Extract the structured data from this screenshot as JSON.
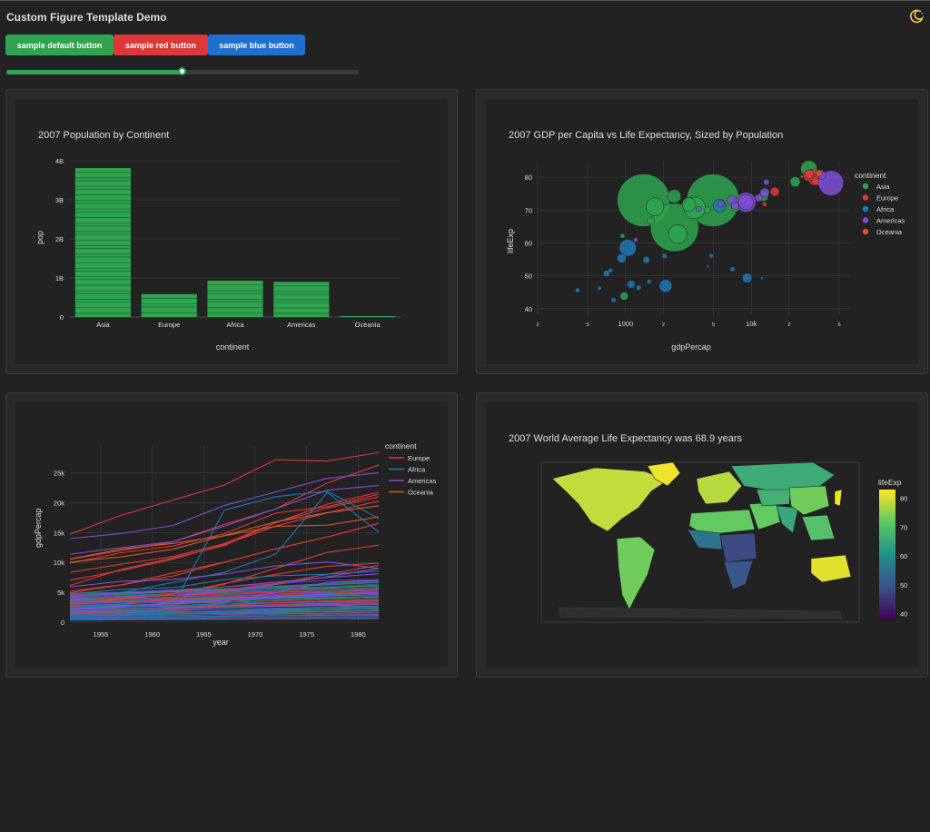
{
  "app": {
    "title": "Custom Figure Template Demo",
    "theme_toggle_icon": "moon-sun-icon"
  },
  "controls": {
    "buttons": [
      {
        "label": "sample default button",
        "color": "#2ea44f"
      },
      {
        "label": "sample red button",
        "color": "#dc3838"
      },
      {
        "label": "sample blue button",
        "color": "#1f6fd0"
      }
    ],
    "slider": {
      "value": 0.5,
      "accent": "#2ea44f"
    }
  },
  "colors": {
    "Asia": "#2ea44f",
    "Europe": "#dc3838",
    "Africa": "#1f77b4",
    "Americas": "#7b4fd6",
    "Oceania": "#d9562b"
  },
  "chart_data": [
    {
      "type": "bar",
      "title": "2007 Population by Continent",
      "xlabel": "continent",
      "ylabel": "pop",
      "categories": [
        "Asia",
        "Europe",
        "Africa",
        "Americas",
        "Oceania"
      ],
      "values": [
        3811953827,
        586098529,
        929539692,
        898871184,
        24549947
      ],
      "ylim": [
        0,
        4000000000
      ],
      "yticks": [
        0,
        1000000000,
        2000000000,
        3000000000,
        4000000000
      ],
      "ytick_labels": [
        "0",
        "1B",
        "2B",
        "3B",
        "4B"
      ],
      "segments_note_stacked_countries": true,
      "color": "#2ea44f"
    },
    {
      "type": "scatter",
      "title": "2007 GDP per Capita vs Life Expectancy, Sized by Population",
      "xlabel": "gdpPercap",
      "ylabel": "lifeExp",
      "x_scale": "log",
      "xlim": [
        200,
        60000
      ],
      "ylim": [
        38,
        85
      ],
      "xtick_labels": [
        "2",
        "5",
        "1000",
        "2",
        "5",
        "10k",
        "2",
        "5"
      ],
      "xtick_values": [
        200,
        500,
        1000,
        2000,
        5000,
        10000,
        20000,
        50000
      ],
      "ytick_values": [
        40,
        50,
        60,
        70,
        80
      ],
      "legend_title": "continent",
      "legend_position": "right",
      "series": [
        {
          "name": "Asia",
          "points": [
            [
              1391,
              72.96,
              1318683096
            ],
            [
              2452,
              64.7,
              1110396331
            ],
            [
              3541,
              70.65,
              223547000
            ],
            [
              4959,
              72.96,
              1318683096
            ],
            [
              28718,
              82.6,
              127467972
            ],
            [
              975,
              43.83,
              31889923
            ],
            [
              1713,
              71.0,
              150448339
            ],
            [
              12451,
              74.2,
              47000000
            ],
            [
              47143,
              80.0,
              4500000
            ],
            [
              2605,
              62.7,
              164000000
            ],
            [
              3190,
              71.7,
              91000000
            ],
            [
              7458,
              70.6,
              27000000
            ],
            [
              10461,
              73.0,
              5000000
            ],
            [
              22316,
              78.6,
              49000000
            ],
            [
              4471,
              70.0,
              19000000
            ],
            [
              944,
              62.1,
              10000000
            ],
            [
              1593,
              66.8,
              26000000
            ],
            [
              2442,
              74.2,
              85000000
            ]
          ]
        },
        {
          "name": "Europe",
          "points": [
            [
              32170,
              79.4,
              82400996
            ],
            [
              30470,
              80.7,
              61083916
            ],
            [
              33203,
              79.3,
              60776238
            ],
            [
              28569,
              80.5,
              58147733
            ],
            [
              28821,
              80.9,
              40448191
            ],
            [
              36126,
              81.7,
              7554661
            ],
            [
              15390,
              75.6,
              38518241
            ],
            [
              9786,
              72.5,
              22276056
            ],
            [
              12779,
              71.8,
              10000000
            ],
            [
              8458,
              73.3,
              25000000
            ],
            [
              40676,
              80.2,
              4600000
            ],
            [
              33692,
              80.3,
              9000000
            ]
          ]
        },
        {
          "name": "Africa",
          "points": [
            [
              803,
              42.6,
              12420476
            ],
            [
              12154,
              49.3,
              1639131
            ],
            [
              1271,
              46.4,
              12000000
            ],
            [
              2082,
              46.9,
              76511887
            ],
            [
              7092,
              52.0,
              12000000
            ],
            [
              5581,
              71.3,
              80264543
            ],
            [
              4798,
              56.1,
              9000000
            ],
            [
              1042,
              58.5,
              135031164
            ],
            [
              1544,
              48.2,
              10000000
            ],
            [
              930,
              55.3,
              40000000
            ],
            [
              620,
              46.2,
              8000000
            ],
            [
              1463,
              54.8,
              23000000
            ],
            [
              706,
              50.7,
              20000000
            ],
            [
              2042,
              56.0,
              12000000
            ],
            [
              4513,
              52.9,
              2000000
            ],
            [
              9270,
              49.3,
              44000000
            ],
            [
              415,
              45.6,
              11000000
            ],
            [
              759,
              51.6,
              10000000
            ],
            [
              1107,
              47.4,
              30000000
            ]
          ]
        },
        {
          "name": "Americas",
          "points": [
            [
              42952,
              78.2,
              301139947
            ],
            [
              36319,
              80.65,
              33390141
            ],
            [
              9066,
              72.4,
              108700891
            ],
            [
              9065,
              72.39,
              190010647
            ],
            [
              12779,
              75.3,
              40301927
            ],
            [
              13172,
              78.5,
              16284741
            ],
            [
              7007,
              72.9,
              44227550
            ],
            [
              11416,
              73.7,
              26084662
            ],
            [
              7408,
              71.4,
              28674757
            ],
            [
              5728,
              71.9,
              20000000
            ],
            [
              3822,
              70.3,
              13000000
            ],
            [
              1202,
              60.9,
              9000000
            ]
          ]
        },
        {
          "name": "Oceania",
          "points": [
            [
              34435,
              81.2,
              20434176
            ],
            [
              25185,
              80.2,
              4115771
            ]
          ]
        }
      ]
    },
    {
      "type": "line",
      "xlabel": "year",
      "ylabel": "gdpPercap",
      "xlim": [
        1952,
        1982
      ],
      "ylim": [
        0,
        29500
      ],
      "xtick_values": [
        1955,
        1960,
        1965,
        1970,
        1975,
        1980
      ],
      "ytick_values": [
        0,
        5000,
        10000,
        15000,
        20000,
        25000
      ],
      "ytick_labels": [
        "0",
        "5k",
        "10k",
        "15k",
        "20k",
        "25k"
      ],
      "x": [
        1952,
        1957,
        1962,
        1967,
        1972,
        1977,
        1982
      ],
      "legend_title": "continent",
      "legend_position": "top-right",
      "series": [
        {
          "name": "Europe",
          "values": [
            14734,
            17909,
            20431,
            22966,
            27195,
            26982,
            28398
          ]
        },
        {
          "name": "Europe",
          "values": [
            10540,
            12000,
            13450,
            16361,
            18965,
            23311,
            26298
          ]
        },
        {
          "name": "Europe",
          "values": [
            9867,
            11635,
            12753,
            14805,
            18268,
            19340,
            21399
          ]
        },
        {
          "name": "Europe",
          "values": [
            8343,
            9714,
            10991,
            13149,
            16672,
            19117,
            20979
          ]
        },
        {
          "name": "Europe",
          "values": [
            7029,
            8662,
            10560,
            12999,
            16107,
            18292,
            20293
          ]
        },
        {
          "name": "Europe",
          "values": [
            6137,
            8842,
            10750,
            12834,
            16661,
            19749,
            21746
          ]
        },
        {
          "name": "Europe",
          "values": [
            5210,
            6248,
            7727,
            10022,
            12269,
            14255,
            16537
          ]
        },
        {
          "name": "Europe",
          "values": [
            4931,
            6248,
            8243,
            10022,
            12269,
            14255,
            16537
          ]
        },
        {
          "name": "Europe",
          "values": [
            3068,
            3774,
            4728,
            6361,
            9023,
            11675,
            12903
          ]
        },
        {
          "name": "Europe",
          "values": [
            2444,
            3009,
            4062,
            5338,
            6470,
            8012,
            9508
          ]
        },
        {
          "name": "Europe",
          "values": [
            3144,
            3943,
            4735,
            6470,
            8011,
            9357,
            9875
          ]
        },
        {
          "name": "Europe",
          "values": [
            1601,
            1942,
            2313,
            2760,
            3313,
            3533,
            3631
          ]
        },
        {
          "name": "Africa",
          "values": [
            2449,
            3014,
            2551,
            3247,
            4183,
            4910,
            5745
          ]
        },
        {
          "name": "Africa",
          "values": [
            4725,
            5487,
            5768,
            7114,
            7765,
            8028,
            8568
          ]
        },
        {
          "name": "Africa",
          "values": [
            4293,
            4976,
            6631,
            8358,
            11401,
            21745,
            15113
          ]
        },
        {
          "name": "Africa",
          "values": [
            2387,
            2628,
            2775,
            18773,
            21011,
            21951,
            17364
          ]
        },
        {
          "name": "Africa",
          "values": [
            1000,
            1200,
            1400,
            1600,
            2000,
            2500,
            2100
          ]
        },
        {
          "name": "Africa",
          "values": [
            700,
            800,
            900,
            1000,
            1100,
            1200,
            1150
          ]
        },
        {
          "name": "Africa",
          "values": [
            350,
            400,
            450,
            480,
            520,
            580,
            600
          ]
        },
        {
          "name": "Africa",
          "values": [
            1300,
            1500,
            1700,
            1900,
            2200,
            2400,
            2500
          ]
        },
        {
          "name": "Americas",
          "values": [
            13990,
            14847,
            16173,
            19530,
            21806,
            24072,
            25010
          ]
        },
        {
          "name": "Americas",
          "values": [
            11367,
            12490,
            13462,
            16077,
            18971,
            22091,
            22899
          ]
        },
        {
          "name": "Americas",
          "values": [
            5911,
            6857,
            7133,
            8053,
            9443,
            10079,
            8998
          ]
        },
        {
          "name": "Americas",
          "values": [
            3940,
            4330,
            4519,
            5127,
            6306,
            7590,
            8998
          ]
        },
        {
          "name": "Americas",
          "values": [
            2108,
            2487,
            3337,
            3430,
            4986,
            6660,
            7031
          ]
        },
        {
          "name": "Americas",
          "values": [
            2173,
            2630,
            3125,
            3672,
            4390,
            4679,
            4970
          ]
        },
        {
          "name": "Americas",
          "values": [
            4300,
            4800,
            5300,
            5900,
            6700,
            7500,
            8100
          ]
        },
        {
          "name": "Americas",
          "values": [
            1800,
            2000,
            2200,
            2450,
            2700,
            3000,
            3100
          ]
        },
        {
          "name": "Americas",
          "values": [
            3300,
            3400,
            3500,
            3800,
            4100,
            4400,
            4600
          ]
        },
        {
          "name": "Oceania",
          "values": [
            10040,
            10950,
            12217,
            14526,
            16789,
            18334,
            19477
          ]
        },
        {
          "name": "Oceania",
          "values": [
            10557,
            12247,
            13176,
            14464,
            16046,
            16234,
            17632
          ]
        }
      ]
    },
    {
      "type": "heatmap",
      "subtype": "choropleth",
      "title": "2007 World Average Life Expectancy was 68.9 years",
      "colorbar_title": "lifeExp",
      "colorbar_range": [
        38,
        83
      ],
      "colorbar_ticks": [
        40,
        50,
        60,
        70,
        80
      ],
      "colorscale": "viridis",
      "regions": [
        {
          "name": "North America",
          "value": 79
        },
        {
          "name": "South America",
          "value": 73
        },
        {
          "name": "Europe",
          "value": 78
        },
        {
          "name": "Russia",
          "value": 66
        },
        {
          "name": "North Africa",
          "value": 72
        },
        {
          "name": "West Africa",
          "value": 55
        },
        {
          "name": "Central Africa",
          "value": 48
        },
        {
          "name": "Southern Africa",
          "value": 50
        },
        {
          "name": "Middle East",
          "value": 72
        },
        {
          "name": "Central Asia",
          "value": 67
        },
        {
          "name": "South Asia",
          "value": 65
        },
        {
          "name": "China",
          "value": 73
        },
        {
          "name": "Southeast Asia",
          "value": 70
        },
        {
          "name": "Japan",
          "value": 82
        },
        {
          "name": "Australia",
          "value": 81
        },
        {
          "name": "Greenland",
          "value": 82
        }
      ]
    }
  ]
}
